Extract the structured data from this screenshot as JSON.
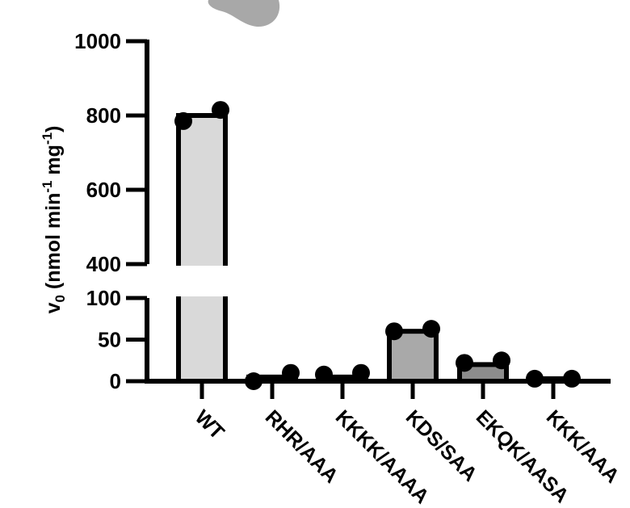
{
  "chart_data": {
    "type": "bar",
    "title": "",
    "xlabel": "",
    "ylabel": {
      "symbol": "v",
      "symbol_sub": "0",
      "unit_prefix": " (nmol min",
      "unit_exp1": "-1",
      "unit_mid": " mg",
      "unit_exp2": "-1",
      "unit_suffix": ")"
    },
    "axis_break": true,
    "lower_segment": {
      "ylim": [
        0,
        100
      ],
      "ticks": [
        0,
        50,
        100
      ]
    },
    "upper_segment": {
      "ylim": [
        400,
        1000
      ],
      "ticks": [
        400,
        600,
        800,
        1000
      ]
    },
    "categories": [
      "WT",
      "RHR/AAA",
      "KKKK/AAAA",
      "KDS/SAA",
      "EKQK/AASA",
      "KKK/AAA"
    ],
    "values": [
      800,
      5,
      5,
      60,
      20,
      3
    ],
    "replicates": [
      [
        785,
        815
      ],
      [
        0,
        10
      ],
      [
        8,
        10
      ],
      [
        60,
        63
      ],
      [
        22,
        25
      ],
      [
        3,
        3
      ]
    ],
    "bar_colors": [
      "#d9d9d9",
      "#d9d9d9",
      "#d9d9d9",
      "#a9a9a9",
      "#8c8c8c",
      "#8c8c8c"
    ],
    "grid": false,
    "legend": "none"
  }
}
